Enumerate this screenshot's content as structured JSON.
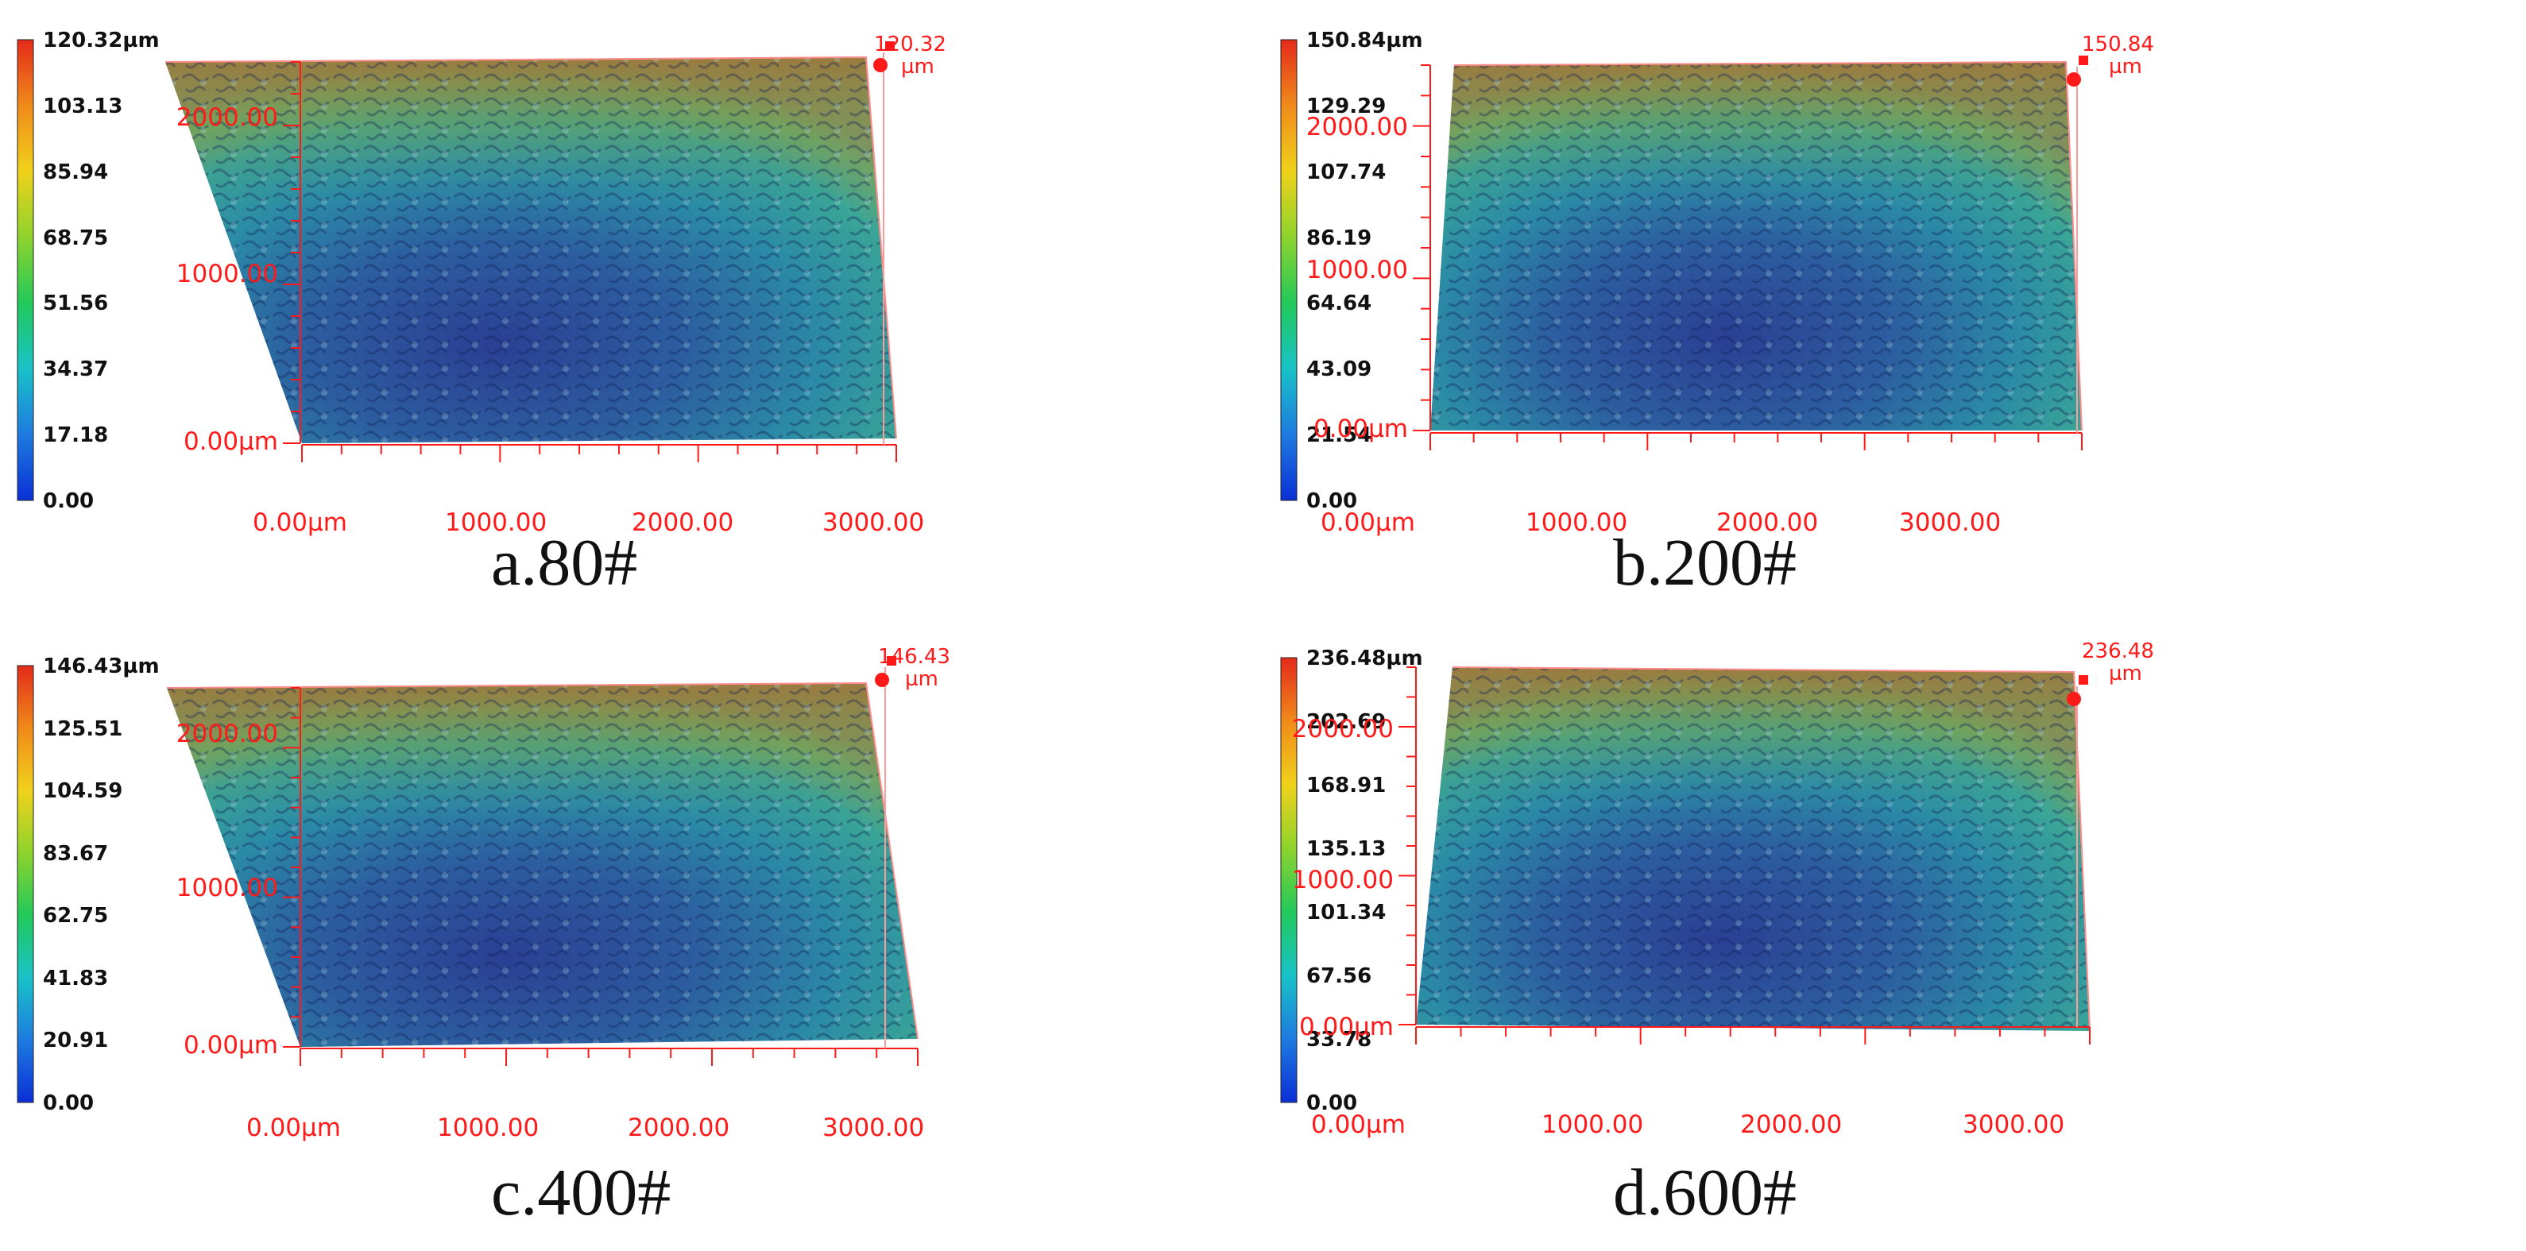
{
  "panels": [
    {
      "caption": "a.80#",
      "scale_labels": [
        "120.32µm",
        "103.13",
        "85.94",
        "68.75",
        "51.56",
        "34.37",
        "17.18",
        "0.00"
      ],
      "peak_value": "120.32",
      "peak_unit": "µm",
      "y_labels": [
        "2000.00",
        "1000.00",
        "0.00µm"
      ],
      "x_labels": [
        "0.00µm",
        "1000.00",
        "2000.00",
        "3000.00"
      ]
    },
    {
      "caption": "b.200#",
      "scale_labels": [
        "150.84µm",
        "129.29",
        "107.74",
        "86.19",
        "64.64",
        "43.09",
        "21.54",
        "0.00"
      ],
      "peak_value": "150.84",
      "peak_unit": "µm",
      "y_labels": [
        "2000.00",
        "1000.00",
        "0.00µm"
      ],
      "x_labels": [
        "0.00µm",
        "1000.00",
        "2000.00",
        "3000.00"
      ]
    },
    {
      "caption": "c.400#",
      "scale_labels": [
        "146.43µm",
        "125.51",
        "104.59",
        "83.67",
        "62.75",
        "41.83",
        "20.91",
        "0.00"
      ],
      "peak_value": "146.43",
      "peak_unit": "µm",
      "y_labels": [
        "2000.00",
        "1000.00",
        "0.00µm"
      ],
      "x_labels": [
        "0.00µm",
        "1000.00",
        "2000.00",
        "3000.00"
      ]
    },
    {
      "caption": "d.600#",
      "scale_labels": [
        "236.48µm",
        "202.69",
        "168.91",
        "135.13",
        "101.34",
        "67.56",
        "33.78",
        "0.00"
      ],
      "peak_value": "236.48",
      "peak_unit": "µm",
      "y_labels": [
        "2000.00",
        "1000.00",
        "0.00µm"
      ],
      "x_labels": [
        "0.00µm",
        "1000.00",
        "2000.00",
        "3000.00"
      ]
    }
  ],
  "colors": {
    "axis": "#ff1a1a",
    "colorbar_stops": [
      "#0a2fd6",
      "#1e7be0",
      "#18c2c8",
      "#22c95a",
      "#8ed32c",
      "#f0d21a",
      "#f08a1a",
      "#e42a1a"
    ]
  }
}
